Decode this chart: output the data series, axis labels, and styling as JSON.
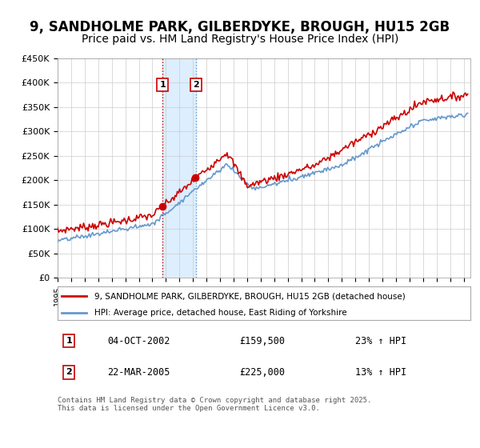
{
  "title": "9, SANDHOLME PARK, GILBERDYKE, BROUGH, HU15 2GB",
  "subtitle": "Price paid vs. HM Land Registry's House Price Index (HPI)",
  "legend_line1": "9, SANDHOLME PARK, GILBERDYKE, BROUGH, HU15 2GB (detached house)",
  "legend_line2": "HPI: Average price, detached house, East Riding of Yorkshire",
  "footer": "Contains HM Land Registry data © Crown copyright and database right 2025.\nThis data is licensed under the Open Government Licence v3.0.",
  "purchase1_date": "04-OCT-2002",
  "purchase1_price": 159500,
  "purchase1_hpi": "23% ↑ HPI",
  "purchase2_date": "22-MAR-2005",
  "purchase2_price": 225000,
  "purchase2_hpi": "13% ↑ HPI",
  "purchase1_x": 2002.75,
  "purchase2_x": 2005.22,
  "red_line_color": "#cc0000",
  "blue_line_color": "#6699cc",
  "shade_color": "#ddeeff",
  "vline1_color": "#cc0000",
  "vline2_color": "#6699cc",
  "ylim": [
    0,
    450000
  ],
  "xlim_start": 1995.0,
  "xlim_end": 2025.5,
  "background_color": "#ffffff",
  "grid_color": "#cccccc",
  "title_fontsize": 12,
  "subtitle_fontsize": 10,
  "ytick_labels": [
    "£0",
    "£50K",
    "£100K",
    "£150K",
    "£200K",
    "£250K",
    "£300K",
    "£350K",
    "£400K",
    "£450K"
  ],
  "ytick_values": [
    0,
    50000,
    100000,
    150000,
    200000,
    250000,
    300000,
    350000,
    400000,
    450000
  ]
}
